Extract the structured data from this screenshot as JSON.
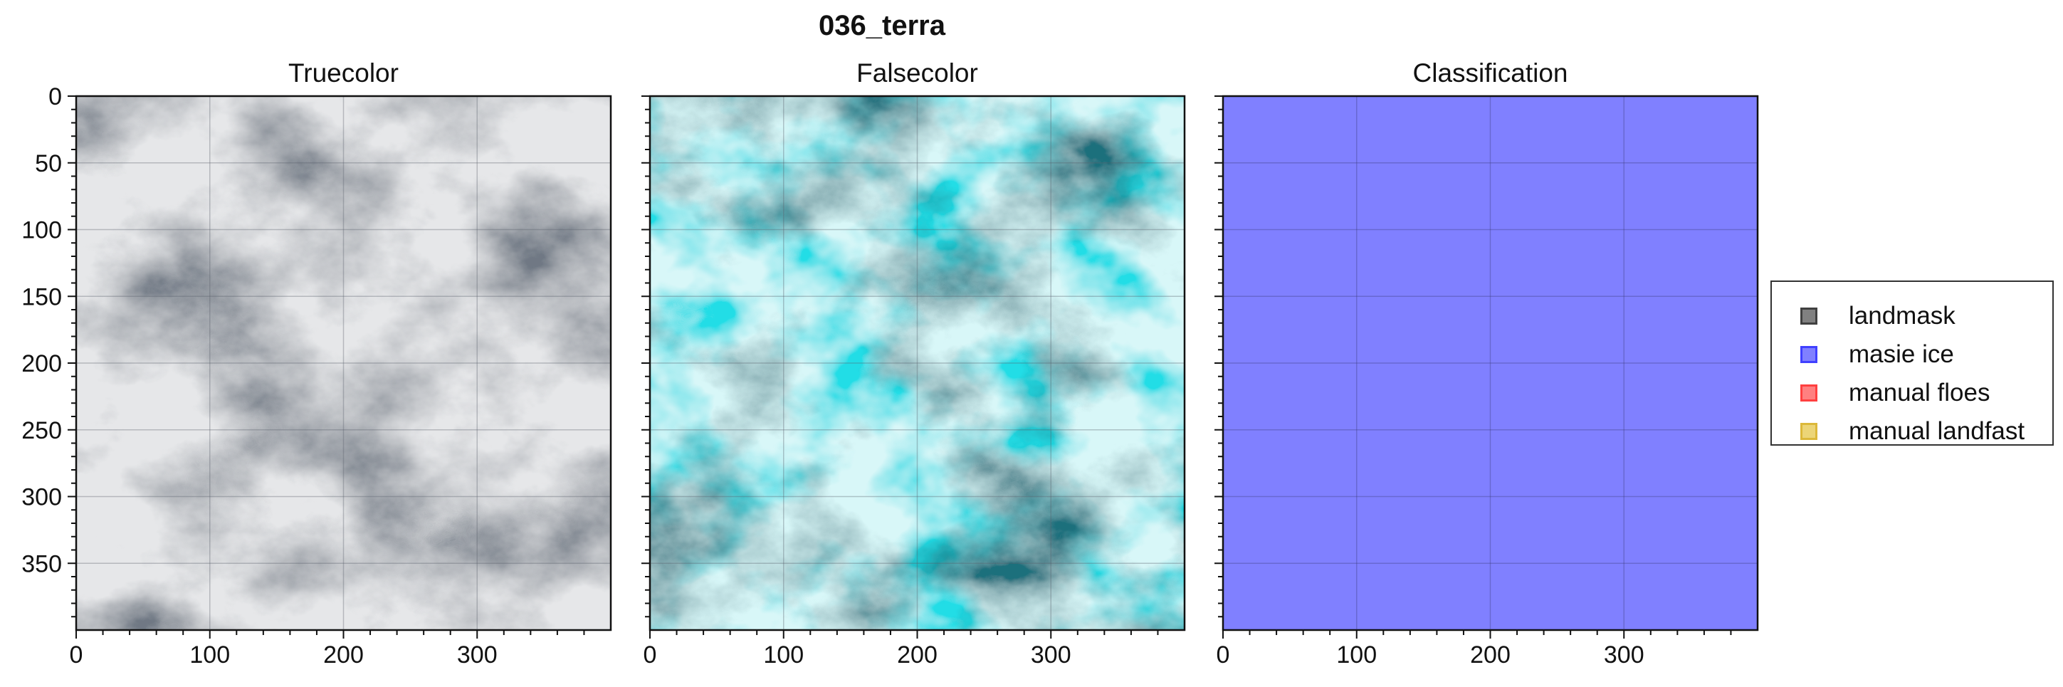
{
  "figure": {
    "suptitle": "036_terra"
  },
  "chart_data": [
    {
      "type": "image",
      "title": "Truecolor",
      "xlim": [
        0,
        400
      ],
      "ylim": [
        400,
        0
      ],
      "xticks": [
        0,
        100,
        200,
        300
      ],
      "yticks": [
        0,
        50,
        100,
        150,
        200,
        250,
        300,
        350
      ],
      "yticks_labeled": true,
      "grid": true,
      "description_colors": {
        "base": "#d9dadc",
        "shade": "#9aa0a8",
        "highlight": "#f4f4f4"
      }
    },
    {
      "type": "image",
      "title": "Falsecolor",
      "xlim": [
        0,
        400
      ],
      "ylim": [
        400,
        0
      ],
      "xticks": [
        0,
        100,
        200,
        300
      ],
      "yticks": [
        0,
        50,
        100,
        150,
        200,
        250,
        300,
        350
      ],
      "yticks_labeled": false,
      "grid": true,
      "description_colors": {
        "base": "#a8eef0",
        "shade": "#1a8f9a",
        "highlight": "#e8fbfb",
        "cyan": "#22d8e2"
      }
    },
    {
      "type": "heatmap",
      "title": "Classification",
      "xlim": [
        0,
        400
      ],
      "ylim": [
        400,
        0
      ],
      "xticks": [
        0,
        100,
        200,
        300
      ],
      "yticks": [
        0,
        50,
        100,
        150,
        200,
        250,
        300,
        350
      ],
      "yticks_labeled": false,
      "grid": true,
      "fill_class": "masie ice",
      "fill_color": "#8080ff"
    }
  ],
  "legend": {
    "placement": "right",
    "items": [
      {
        "label": "landmask",
        "color": "#808080",
        "edge": "#404040"
      },
      {
        "label": "masie ice",
        "color": "#8080ff",
        "edge": "#4040ff"
      },
      {
        "label": "manual floes",
        "color": "#ff8080",
        "edge": "#ff4040"
      },
      {
        "label": "manual landfast",
        "color": "#ecd577",
        "edge": "#dcb83a"
      }
    ]
  }
}
